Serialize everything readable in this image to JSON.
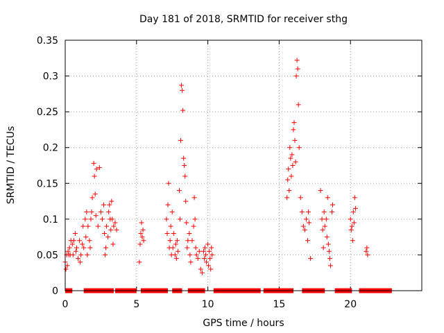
{
  "chart_data": {
    "type": "scatter",
    "title": "Day 181 of 2018, SRMTID for receiver sthg",
    "xlabel": "GPS time / hours",
    "ylabel": "SRMTID / TECUs",
    "xlim": [
      0,
      25
    ],
    "ylim": [
      0,
      0.35
    ],
    "x_ticks": [
      0,
      5,
      10,
      15,
      20
    ],
    "x_tick_labels": [
      "0",
      "5",
      "10",
      "15",
      "20"
    ],
    "y_ticks": [
      0,
      0.05,
      0.1,
      0.15,
      0.2,
      0.25,
      0.3,
      0.35
    ],
    "y_tick_labels": [
      "0",
      "0.05",
      "0.1",
      "0.15",
      "0.2",
      "0.25",
      "0.3",
      "0.35"
    ],
    "grid": true,
    "marker": "+",
    "series": [
      {
        "name": "SRMTID",
        "color": "#ff0000",
        "points": [
          [
            0.0,
            0.04
          ],
          [
            0.05,
            0.03
          ],
          [
            0.1,
            0.05
          ],
          [
            0.15,
            0.035
          ],
          [
            0.2,
            0.055
          ],
          [
            0.25,
            0.05
          ],
          [
            0.3,
            0.06
          ],
          [
            0.35,
            0.05
          ],
          [
            0.4,
            0.07
          ],
          [
            0.5,
            0.065
          ],
          [
            0.55,
            0.05
          ],
          [
            0.6,
            0.07
          ],
          [
            0.7,
            0.08
          ],
          [
            0.75,
            0.055
          ],
          [
            0.8,
            0.06
          ],
          [
            0.9,
            0.045
          ],
          [
            1.0,
            0.07
          ],
          [
            1.05,
            0.04
          ],
          [
            1.1,
            0.05
          ],
          [
            1.2,
            0.065
          ],
          [
            1.25,
            0.09
          ],
          [
            1.3,
            0.06
          ],
          [
            1.4,
            0.1
          ],
          [
            1.45,
            0.075
          ],
          [
            1.5,
            0.11
          ],
          [
            1.55,
            0.05
          ],
          [
            1.6,
            0.09
          ],
          [
            1.7,
            0.07
          ],
          [
            1.75,
            0.06
          ],
          [
            1.8,
            0.1
          ],
          [
            1.85,
            0.11
          ],
          [
            1.9,
            0.13
          ],
          [
            2.0,
            0.178
          ],
          [
            2.05,
            0.16
          ],
          [
            2.1,
            0.135
          ],
          [
            2.15,
            0.105
          ],
          [
            2.2,
            0.17
          ],
          [
            2.3,
            0.09
          ],
          [
            2.4,
            0.172
          ],
          [
            2.5,
            0.11
          ],
          [
            2.6,
            0.1
          ],
          [
            2.7,
            0.12
          ],
          [
            2.75,
            0.08
          ],
          [
            2.8,
            0.05
          ],
          [
            2.85,
            0.06
          ],
          [
            2.9,
            0.09
          ],
          [
            3.0,
            0.075
          ],
          [
            3.05,
            0.11
          ],
          [
            3.1,
            0.12
          ],
          [
            3.15,
            0.1
          ],
          [
            3.2,
            0.085
          ],
          [
            3.25,
            0.125
          ],
          [
            3.3,
            0.1
          ],
          [
            3.35,
            0.065
          ],
          [
            3.4,
            0.09
          ],
          [
            3.5,
            0.095
          ],
          [
            3.6,
            0.085
          ],
          [
            5.2,
            0.04
          ],
          [
            5.25,
            0.065
          ],
          [
            5.3,
            0.08
          ],
          [
            5.35,
            0.095
          ],
          [
            5.4,
            0.075
          ],
          [
            5.45,
            0.085
          ],
          [
            5.5,
            0.07
          ],
          [
            7.1,
            0.1
          ],
          [
            7.15,
            0.08
          ],
          [
            7.2,
            0.12
          ],
          [
            7.25,
            0.15
          ],
          [
            7.3,
            0.06
          ],
          [
            7.35,
            0.07
          ],
          [
            7.4,
            0.09
          ],
          [
            7.45,
            0.05
          ],
          [
            7.5,
            0.11
          ],
          [
            7.55,
            0.06
          ],
          [
            7.6,
            0.08
          ],
          [
            7.7,
            0.05
          ],
          [
            7.75,
            0.065
          ],
          [
            7.8,
            0.045
          ],
          [
            7.85,
            0.07
          ],
          [
            7.9,
            0.055
          ],
          [
            8.0,
            0.14
          ],
          [
            8.05,
            0.1
          ],
          [
            8.1,
            0.21
          ],
          [
            8.15,
            0.287
          ],
          [
            8.2,
            0.28
          ],
          [
            8.25,
            0.252
          ],
          [
            8.3,
            0.185
          ],
          [
            8.35,
            0.175
          ],
          [
            8.4,
            0.16
          ],
          [
            8.45,
            0.125
          ],
          [
            8.5,
            0.095
          ],
          [
            8.55,
            0.06
          ],
          [
            8.6,
            0.07
          ],
          [
            8.7,
            0.08
          ],
          [
            8.75,
            0.05
          ],
          [
            8.8,
            0.04
          ],
          [
            8.9,
            0.07
          ],
          [
            9.0,
            0.09
          ],
          [
            9.05,
            0.13
          ],
          [
            9.1,
            0.1
          ],
          [
            9.15,
            0.06
          ],
          [
            9.2,
            0.05
          ],
          [
            9.3,
            0.045
          ],
          [
            9.4,
            0.055
          ],
          [
            9.5,
            0.03
          ],
          [
            9.6,
            0.025
          ],
          [
            9.7,
            0.055
          ],
          [
            9.75,
            0.045
          ],
          [
            9.8,
            0.06
          ],
          [
            9.85,
            0.05
          ],
          [
            9.9,
            0.04
          ],
          [
            10.0,
            0.065
          ],
          [
            10.05,
            0.035
          ],
          [
            10.1,
            0.055
          ],
          [
            10.15,
            0.045
          ],
          [
            10.2,
            0.03
          ],
          [
            10.25,
            0.06
          ],
          [
            10.3,
            0.05
          ],
          [
            15.55,
            0.13
          ],
          [
            15.6,
            0.155
          ],
          [
            15.65,
            0.17
          ],
          [
            15.7,
            0.14
          ],
          [
            15.75,
            0.2
          ],
          [
            15.8,
            0.185
          ],
          [
            15.85,
            0.16
          ],
          [
            15.9,
            0.19
          ],
          [
            15.95,
            0.175
          ],
          [
            16.0,
            0.225
          ],
          [
            16.05,
            0.235
          ],
          [
            16.1,
            0.21
          ],
          [
            16.15,
            0.18
          ],
          [
            16.2,
            0.3
          ],
          [
            16.25,
            0.322
          ],
          [
            16.3,
            0.31
          ],
          [
            16.35,
            0.26
          ],
          [
            16.4,
            0.2
          ],
          [
            16.5,
            0.13
          ],
          [
            16.6,
            0.11
          ],
          [
            16.7,
            0.09
          ],
          [
            16.8,
            0.085
          ],
          [
            16.9,
            0.1
          ],
          [
            17.0,
            0.07
          ],
          [
            17.05,
            0.11
          ],
          [
            17.1,
            0.095
          ],
          [
            17.2,
            0.045
          ],
          [
            17.9,
            0.14
          ],
          [
            18.0,
            0.1
          ],
          [
            18.05,
            0.085
          ],
          [
            18.1,
            0.06
          ],
          [
            18.15,
            0.11
          ],
          [
            18.2,
            0.09
          ],
          [
            18.3,
            0.1
          ],
          [
            18.35,
            0.075
          ],
          [
            18.4,
            0.13
          ],
          [
            18.45,
            0.065
          ],
          [
            18.5,
            0.055
          ],
          [
            18.55,
            0.045
          ],
          [
            18.6,
            0.035
          ],
          [
            18.7,
            0.11
          ],
          [
            18.75,
            0.12
          ],
          [
            20.0,
            0.1
          ],
          [
            20.05,
            0.085
          ],
          [
            20.1,
            0.09
          ],
          [
            20.15,
            0.07
          ],
          [
            20.2,
            0.11
          ],
          [
            20.25,
            0.095
          ],
          [
            20.3,
            0.13
          ],
          [
            20.35,
            0.115
          ],
          [
            21.1,
            0.055
          ],
          [
            21.15,
            0.06
          ],
          [
            21.2,
            0.05
          ]
        ],
        "zero_segments": [
          [
            0.0,
            0.5
          ],
          [
            1.3,
            3.4
          ],
          [
            3.5,
            5.0
          ],
          [
            5.3,
            7.2
          ],
          [
            7.5,
            8.2
          ],
          [
            8.6,
            9.8
          ],
          [
            10.4,
            13.7
          ],
          [
            13.9,
            16.0
          ],
          [
            16.6,
            18.2
          ],
          [
            18.9,
            20.1
          ],
          [
            20.6,
            22.9
          ]
        ]
      }
    ]
  }
}
